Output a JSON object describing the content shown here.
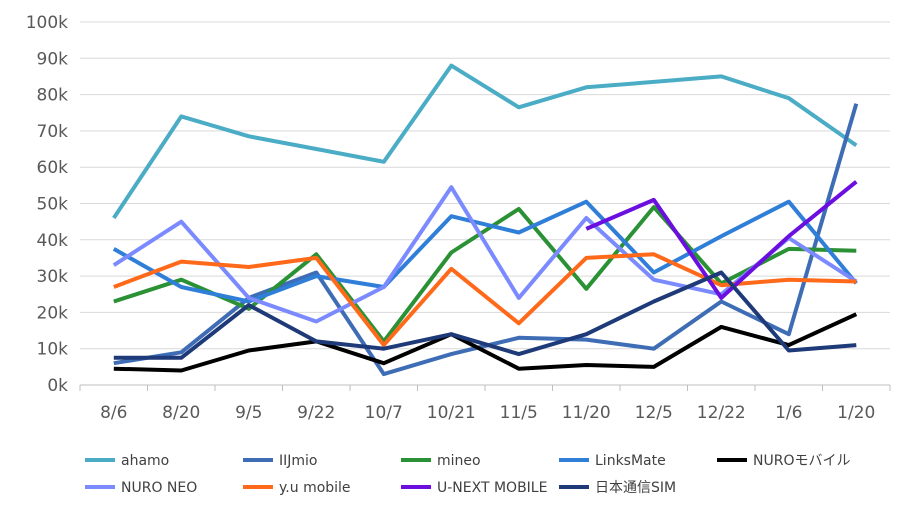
{
  "chart_data": {
    "type": "line",
    "title": "",
    "xlabel": "",
    "ylabel": "",
    "ylim": [
      0,
      100000
    ],
    "yticks": [
      "0k",
      "10k",
      "20k",
      "30k",
      "40k",
      "50k",
      "60k",
      "70k",
      "80k",
      "90k",
      "100k"
    ],
    "grid": true,
    "legend_position": "bottom",
    "categories": [
      "8/6",
      "8/20",
      "9/5",
      "9/22",
      "10/7",
      "10/21",
      "11/5",
      "11/20",
      "12/5",
      "12/22",
      "1/6",
      "1/20"
    ],
    "series": [
      {
        "name": "ahamo",
        "color": "#4bacc6",
        "values": [
          46000,
          74000,
          68500,
          65000,
          61500,
          88000,
          76500,
          82000,
          83500,
          85000,
          79000,
          66000
        ]
      },
      {
        "name": "IIJmio",
        "color": "#3e6db5",
        "values": [
          6000,
          9000,
          24000,
          31000,
          3000,
          8500,
          13000,
          12500,
          10000,
          23000,
          14000,
          77500
        ]
      },
      {
        "name": "mineo",
        "color": "#2a9135",
        "values": [
          23000,
          29000,
          21000,
          36000,
          12000,
          36500,
          48500,
          26500,
          49000,
          28000,
          37500,
          37000
        ]
      },
      {
        "name": "LinksMate",
        "color": "#2f7ed8",
        "values": [
          37500,
          27000,
          23000,
          30000,
          27000,
          46500,
          42000,
          50500,
          31000,
          41000,
          50500,
          28000
        ]
      },
      {
        "name": "NUROモバイル",
        "color": "#000000",
        "values": [
          4500,
          4000,
          9500,
          12000,
          6000,
          14000,
          4500,
          5500,
          5000,
          16000,
          11000,
          19500
        ]
      },
      {
        "name": "NURO NEO",
        "color": "#7b8bff",
        "values": [
          33000,
          45000,
          24000,
          17500,
          27000,
          54500,
          24000,
          46000,
          29000,
          25000,
          40500,
          28500
        ]
      },
      {
        "name": "y.u mobile",
        "color": "#ff6a1a",
        "values": [
          27000,
          34000,
          32500,
          35000,
          11000,
          32000,
          17000,
          35000,
          36000,
          27500,
          29000,
          28500
        ]
      },
      {
        "name": "U-NEXT MOBILE",
        "color": "#6a0fe0",
        "values": [
          null,
          null,
          null,
          null,
          null,
          null,
          null,
          43000,
          51000,
          24000,
          41000,
          56000
        ]
      },
      {
        "name": "日本通信SIM",
        "color": "#1f3a78",
        "values": [
          7500,
          7500,
          22000,
          12000,
          10000,
          14000,
          8500,
          14000,
          23000,
          31000,
          9500,
          11000
        ]
      }
    ]
  }
}
